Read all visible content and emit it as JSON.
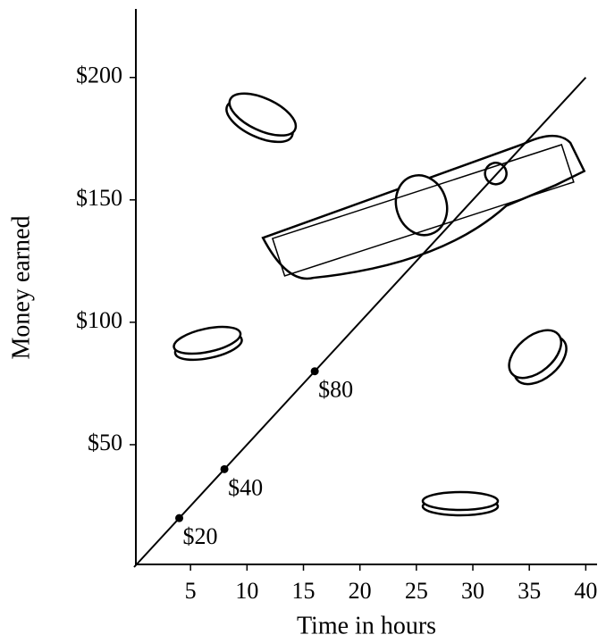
{
  "chart_data": {
    "type": "line",
    "x_label": "Time in hours",
    "y_label": "Money earned",
    "xlim": [
      0,
      41
    ],
    "ylim": [
      0,
      228
    ],
    "xticks": [
      5,
      10,
      15,
      20,
      25,
      30,
      35,
      40
    ],
    "yticks": [
      {
        "value": 50,
        "label": "$50"
      },
      {
        "value": 100,
        "label": "$100"
      },
      {
        "value": 150,
        "label": "$150"
      },
      {
        "value": 200,
        "label": "$200"
      }
    ],
    "series": [
      {
        "name": "Earnings",
        "color": "#000000",
        "x": [
          0,
          40
        ],
        "values": [
          0,
          200
        ]
      },
      {
        "name": "Marked points",
        "color": "#000000",
        "x": [
          4,
          8,
          16
        ],
        "values": [
          20,
          40,
          80
        ],
        "value_labels": [
          "$20",
          "$40",
          "$80"
        ]
      }
    ]
  }
}
